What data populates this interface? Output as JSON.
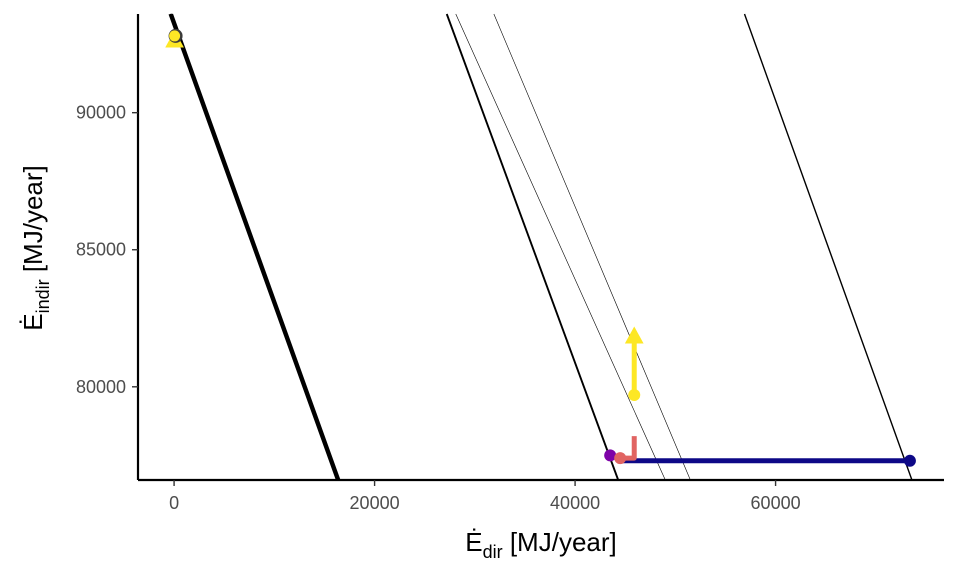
{
  "chart_data": {
    "type": "line",
    "xlabel": {
      "symbol": "Ė",
      "subscript": "dir",
      "unit": " [MJ/year]"
    },
    "ylabel": {
      "symbol": "Ė",
      "subscript": "indir",
      "unit": " [MJ/year]"
    },
    "xlim": [
      -3600,
      76800
    ],
    "ylim": [
      76600,
      93600
    ],
    "x_ticks": [
      {
        "value": 0,
        "label": "0"
      },
      {
        "value": 20000,
        "label": "20000"
      },
      {
        "value": 40000,
        "label": "40000"
      },
      {
        "value": 60000,
        "label": "60000"
      }
    ],
    "y_ticks": [
      {
        "value": 80000,
        "label": "80000"
      },
      {
        "value": 85000,
        "label": "85000"
      },
      {
        "value": 90000,
        "label": "90000"
      }
    ],
    "grid": false,
    "reference_lines": [
      {
        "x1": -400,
        "y1": 93600,
        "x2": 16300,
        "y2": 76600,
        "weight": "heavy",
        "color": "#000000"
      },
      {
        "x1": -200,
        "y1": 93600,
        "x2": 16500,
        "y2": 76600,
        "weight": "medium",
        "color": "#000000"
      },
      {
        "x1": 27200,
        "y1": 93600,
        "x2": 44300,
        "y2": 76600,
        "weight": "medium",
        "color": "#000000"
      },
      {
        "x1": 28100,
        "y1": 93600,
        "x2": 49000,
        "y2": 76600,
        "weight": "thin",
        "color": "#000000"
      },
      {
        "x1": 31900,
        "y1": 93600,
        "x2": 51500,
        "y2": 76600,
        "weight": "thin",
        "color": "#000000"
      },
      {
        "x1": 56900,
        "y1": 93600,
        "x2": 73600,
        "y2": 76600,
        "weight": "light",
        "color": "#000000"
      }
    ],
    "series": [
      {
        "color": "#0d0887",
        "x": [
          73400,
          44300
        ],
        "y": [
          77300,
          77300
        ],
        "start_marker": "circle",
        "end_marker": "none"
      },
      {
        "color": "#7e03a8",
        "x": [
          43500,
          43900
        ],
        "y": [
          77500,
          77500
        ],
        "start_marker": "circle",
        "end_marker": "none"
      },
      {
        "color": "#e16462",
        "x": [
          44500,
          45900,
          45900
        ],
        "y": [
          77400,
          77400,
          78200
        ],
        "start_marker": "circle",
        "end_marker": "none"
      },
      {
        "color": "#fde725",
        "x": [
          45900,
          45900
        ],
        "y": [
          79700,
          81800
        ],
        "start_marker": "circle",
        "end_marker": "triangle"
      },
      {
        "color": "#fde725",
        "x": [
          50
        ],
        "y": [
          92600
        ],
        "start_marker": "triangle",
        "end_marker": "none"
      }
    ],
    "points": [
      {
        "x": 50,
        "y": 92800,
        "color": "#3a3a3a"
      },
      {
        "x": 50,
        "y": 92800,
        "color": "#fde725"
      }
    ]
  }
}
